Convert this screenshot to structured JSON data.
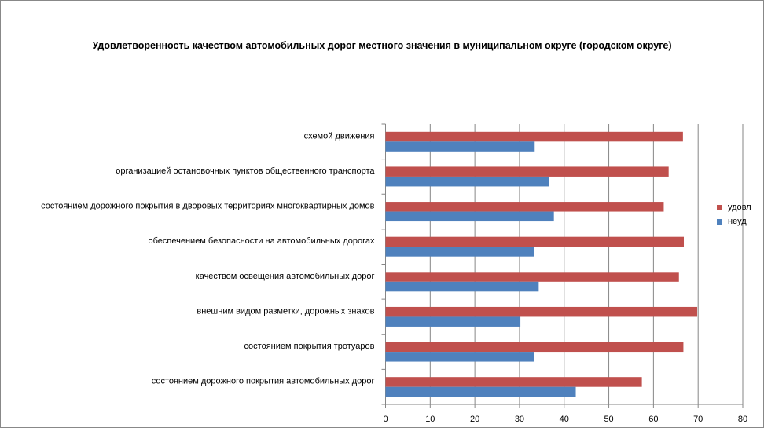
{
  "chart_data": {
    "type": "bar",
    "orientation": "horizontal",
    "title": "Удовлетворенность качеством автомобильных дорог местного значения в муниципальном округе (городском округе)",
    "categories": [
      "схемой движения",
      "организацией остановочных пунктов общественного транспорта",
      "состоянием дорожного покрытия в дворовых территориях многоквартирных домов",
      "обеспечением безопасности на автомобильных дорогах",
      "качеством освещения автомобильных дорог",
      "внешним видом разметки, дорожных знаков",
      "состоянием покрытия тротуаров",
      "состоянием дорожного покрытия автомобильных дорог"
    ],
    "series": [
      {
        "name": "удовл",
        "color": "#c0504d",
        "values": [
          66.6,
          63.4,
          62.3,
          66.8,
          65.7,
          69.8,
          66.7,
          57.4
        ]
      },
      {
        "name": "неуд",
        "color": "#4f81bd",
        "values": [
          33.4,
          36.6,
          37.7,
          33.2,
          34.3,
          30.2,
          33.3,
          42.6
        ]
      }
    ],
    "xlim": [
      0,
      80
    ],
    "xticks": [
      "0",
      "10",
      "20",
      "30",
      "40",
      "50",
      "60",
      "70",
      "80"
    ],
    "grid": true,
    "legend": "right"
  }
}
